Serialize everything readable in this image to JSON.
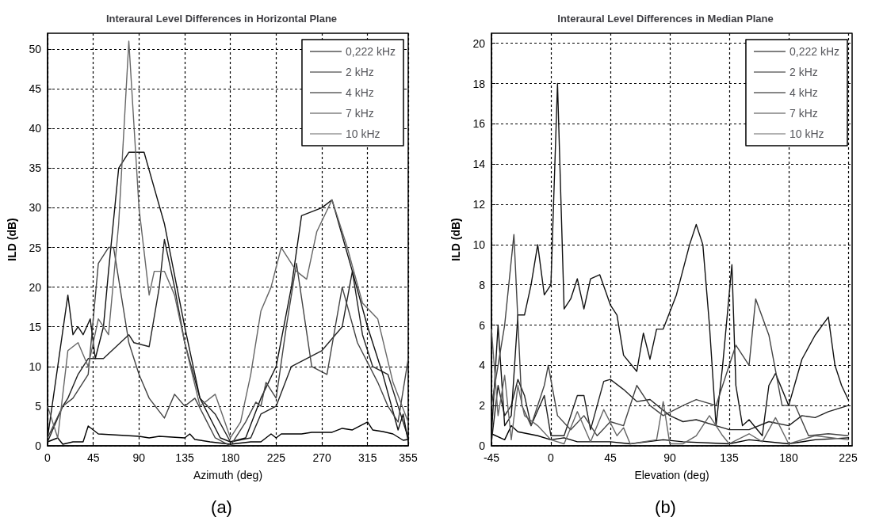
{
  "chart_data": [
    {
      "type": "line",
      "title": "Interaural Level Differences in Horizontal Plane",
      "xlabel": "Azimuth (deg)",
      "ylabel": "ILD (dB)",
      "annotations": [
        "(a)"
      ],
      "xlim": [
        0,
        355
      ],
      "xticks": [
        0,
        45,
        90,
        135,
        180,
        225,
        270,
        315,
        355
      ],
      "ylim": [
        0,
        52
      ],
      "yticks": [
        0,
        5,
        10,
        15,
        20,
        25,
        30,
        35,
        40,
        45,
        50
      ],
      "grid": true,
      "legend": "top right",
      "series": [
        {
          "name": "0,222 kHz",
          "color": "#000000",
          "x": [
            0,
            10,
            15,
            25,
            35,
            40,
            50,
            90,
            100,
            110,
            135,
            140,
            145,
            160,
            180,
            200,
            210,
            220,
            225,
            230,
            250,
            260,
            280,
            290,
            300,
            315,
            320,
            330,
            340,
            350,
            355
          ],
          "values": [
            0.5,
            1,
            0.2,
            0.5,
            0.5,
            2.5,
            1.5,
            1.2,
            1,
            1.2,
            1,
            1.5,
            0.8,
            0.5,
            0.2,
            0.5,
            0.5,
            1.5,
            1,
            1.5,
            1.5,
            1.7,
            1.7,
            2.2,
            2,
            3,
            2,
            1.8,
            1.5,
            0.7,
            0.8
          ]
        },
        {
          "name": "2 kHz",
          "color": "#222222",
          "x": [
            0,
            15,
            20,
            30,
            40,
            45,
            55,
            80,
            85,
            100,
            110,
            115,
            125,
            135,
            150,
            165,
            180,
            200,
            210,
            225,
            240,
            270,
            290,
            300,
            310,
            320,
            335,
            345,
            355
          ],
          "values": [
            0.5,
            5,
            6,
            9,
            11,
            11,
            11,
            14,
            13,
            12.5,
            20,
            26,
            20,
            13,
            6,
            4,
            0.5,
            1,
            4,
            5,
            10,
            12,
            15,
            22,
            14,
            10,
            9,
            5,
            1
          ]
        },
        {
          "name": "4 kHz",
          "color": "#111111",
          "x": [
            0,
            10,
            20,
            25,
            30,
            35,
            42,
            47,
            55,
            60,
            70,
            80,
            95,
            115,
            135,
            150,
            170,
            180,
            195,
            210,
            225,
            240,
            250,
            270,
            280,
            300,
            315,
            330,
            345,
            350,
            355
          ],
          "values": [
            1,
            10,
            19,
            14,
            15,
            14,
            16,
            11,
            15,
            22,
            35,
            37,
            37,
            28,
            15,
            6,
            1,
            0.5,
            1,
            6,
            10,
            20,
            29,
            30,
            31,
            22,
            15,
            9,
            2,
            4,
            0.5
          ]
        },
        {
          "name": "7 kHz",
          "color": "#444444",
          "x": [
            0,
            15,
            25,
            40,
            50,
            60,
            65,
            80,
            90,
            100,
            115,
            125,
            135,
            145,
            155,
            165,
            180,
            195,
            205,
            210,
            215,
            225,
            235,
            245,
            260,
            275,
            290,
            305,
            325,
            335,
            345,
            355
          ],
          "values": [
            1,
            5,
            6,
            9,
            23,
            25,
            25,
            13,
            9,
            6,
            3.5,
            6.5,
            5,
            6,
            3.5,
            1,
            0,
            3,
            5.5,
            5,
            8,
            6,
            15,
            23,
            10,
            9,
            20,
            13,
            8,
            5,
            3,
            11
          ]
        },
        {
          "name": "10 kHz",
          "color": "#666666",
          "x": [
            0,
            10,
            20,
            30,
            40,
            50,
            60,
            70,
            80,
            90,
            100,
            105,
            115,
            125,
            135,
            150,
            165,
            180,
            190,
            200,
            210,
            220,
            230,
            245,
            255,
            265,
            280,
            295,
            310,
            325,
            340,
            355
          ],
          "values": [
            5,
            1,
            12,
            13,
            10,
            16,
            14,
            28,
            51,
            30,
            19,
            22,
            22,
            19,
            13,
            5,
            6.5,
            1,
            3,
            9,
            17,
            20,
            25,
            22,
            21,
            27,
            31,
            25,
            18,
            16,
            8,
            3
          ]
        }
      ]
    },
    {
      "type": "line",
      "title": "Interaural Level Differences in Median Plane",
      "xlabel": "Elevation (deg)",
      "ylabel": "ILD (dB)",
      "annotations": [
        "(b)"
      ],
      "xlim": [
        -45,
        228
      ],
      "xticks": [
        -45,
        0,
        45,
        90,
        135,
        180,
        225
      ],
      "ylim": [
        0,
        20.5
      ],
      "yticks": [
        0,
        2,
        4,
        6,
        8,
        10,
        12,
        14,
        16,
        18,
        20
      ],
      "grid": true,
      "legend": "top right",
      "series": [
        {
          "name": "0,222 kHz",
          "color": "#000000",
          "x": [
            -45,
            -35,
            -30,
            -25,
            -10,
            0,
            10,
            20,
            45,
            60,
            85,
            100,
            135,
            150,
            180,
            200,
            225
          ],
          "values": [
            0.6,
            0.3,
            1,
            0.7,
            0.5,
            0.3,
            0.4,
            0.2,
            0.2,
            0.1,
            0.3,
            0.2,
            0.1,
            0.3,
            0.1,
            0.3,
            0.4
          ]
        },
        {
          "name": "2 kHz",
          "color": "#222222",
          "x": [
            -45,
            -40,
            -35,
            -30,
            -25,
            -20,
            -15,
            -5,
            0,
            10,
            20,
            25,
            30,
            40,
            45,
            55,
            65,
            75,
            90,
            100,
            110,
            125,
            135,
            150,
            165,
            180,
            190,
            200,
            210,
            225
          ],
          "values": [
            0.2,
            3,
            1.5,
            2,
            3.3,
            2.5,
            1,
            2.5,
            0.5,
            0.5,
            2.5,
            2.5,
            0.8,
            3.2,
            3.3,
            2.8,
            2.2,
            2.3,
            1.5,
            1.2,
            1.3,
            1,
            0.8,
            0.8,
            1.2,
            1,
            1.5,
            1.4,
            1.7,
            2
          ]
        },
        {
          "name": "4 kHz",
          "color": "#111111",
          "x": [
            -45,
            -40,
            -35,
            -30,
            -25,
            -20,
            -15,
            -10,
            -5,
            0,
            5,
            10,
            15,
            20,
            25,
            30,
            37,
            45,
            50,
            55,
            65,
            70,
            75,
            80,
            85,
            95,
            105,
            110,
            115,
            120,
            125,
            130,
            137,
            140,
            145,
            150,
            160,
            165,
            170,
            180,
            190,
            200,
            210,
            215,
            220,
            225
          ],
          "values": [
            0.5,
            6,
            1,
            1.5,
            6.5,
            6.5,
            8,
            10,
            7.5,
            8,
            18,
            6.8,
            7.3,
            8.3,
            6.8,
            8.3,
            8.5,
            7,
            6.5,
            4.5,
            3.7,
            5.6,
            4.3,
            5.8,
            5.8,
            7.5,
            10,
            11,
            10,
            6,
            1,
            4,
            9,
            3,
            1,
            1.3,
            0.5,
            3,
            3.6,
            2,
            4.3,
            5.5,
            6.4,
            4,
            3,
            2.3
          ]
        },
        {
          "name": "7 kHz",
          "color": "#444444",
          "x": [
            -45,
            -35,
            -28,
            -22,
            -15,
            -5,
            -2,
            5,
            15,
            25,
            35,
            45,
            55,
            65,
            75,
            85,
            100,
            110,
            125,
            135,
            140,
            150,
            155,
            165,
            175,
            185,
            195,
            210,
            225
          ],
          "values": [
            2,
            6,
            10.5,
            2,
            1,
            3,
            4,
            1.5,
            0.8,
            1.5,
            0.5,
            1.2,
            1,
            3,
            2,
            1.5,
            2,
            2.3,
            2,
            4,
            5,
            4,
            7.3,
            5.5,
            2,
            2,
            0.5,
            0.6,
            0.5
          ]
        },
        {
          "name": "10 kHz",
          "color": "#666666",
          "x": [
            -45,
            -40,
            -35,
            -30,
            -25,
            -20,
            -10,
            0,
            10,
            20,
            30,
            40,
            50,
            55,
            60,
            80,
            85,
            90,
            100,
            110,
            120,
            130,
            135,
            150,
            160,
            170,
            180,
            200,
            225
          ],
          "values": [
            5.8,
            1.5,
            3.5,
            0.3,
            3,
            1.5,
            1,
            0.3,
            0.1,
            1.7,
            0.2,
            1.8,
            0.5,
            0.9,
            0.1,
            0.3,
            2.2,
            0.1,
            0.1,
            0.5,
            1.5,
            0.5,
            0.1,
            0.6,
            0.2,
            1.4,
            0.1,
            0.5,
            0.3
          ]
        }
      ]
    }
  ]
}
